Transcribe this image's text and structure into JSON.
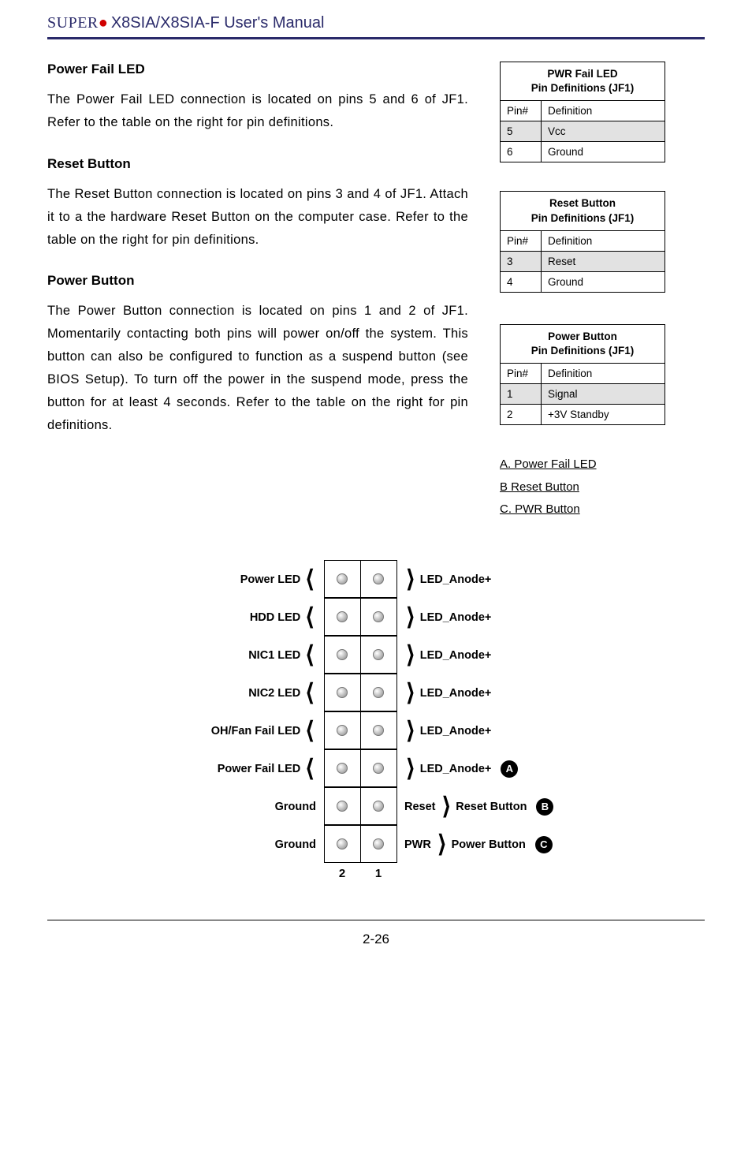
{
  "header": {
    "brand_left": "SUPER",
    "manual_title": "X8SIA/X8SIA-F User's Manual"
  },
  "sections": [
    {
      "title": "Power Fail LED",
      "body": "The Power Fail LED connection is located on pins 5 and 6 of JF1. Refer to the table on the right for pin definitions."
    },
    {
      "title": "Reset Button",
      "body": "The Reset Button connection is located on pins 3 and 4 of JF1. Attach it to a the hardware Reset Button on the computer case. Refer to the table on the right for pin definitions."
    },
    {
      "title": "Power Button",
      "body": "The Power Button connection is located on pins 1 and 2 of JF1. Momentarily contacting both pins will power on/off the system. This button can also be configured to function as a suspend button (see BIOS Setup). To turn off the power in the suspend mode, press the button for at least 4 seconds. Refer to the table on the right for pin definitions."
    }
  ],
  "tables": [
    {
      "header_line1": "PWR Fail LED",
      "header_line2": "Pin Definitions (JF1)",
      "col1": "Pin#",
      "col2": "Definition",
      "rows": [
        {
          "pin": "5",
          "def": "Vcc",
          "shaded": true
        },
        {
          "pin": "6",
          "def": "Ground",
          "shaded": false
        }
      ]
    },
    {
      "header_line1": "Reset Button",
      "header_line2": "Pin Definitions (JF1)",
      "col1": "Pin#",
      "col2": "Definition",
      "rows": [
        {
          "pin": "3",
          "def": "Reset",
          "shaded": true
        },
        {
          "pin": "4",
          "def": "Ground",
          "shaded": false
        }
      ]
    },
    {
      "header_line1": "Power Button",
      "header_line2": "Pin Definitions (JF1)",
      "col1": "Pin#",
      "col2": "Definition",
      "rows": [
        {
          "pin": "1",
          "def": "Signal",
          "shaded": true
        },
        {
          "pin": "2",
          "def": "+3V Standby",
          "shaded": false
        }
      ]
    }
  ],
  "links": [
    "A. Power Fail LED",
    "B Reset Button",
    "C. PWR Button"
  ],
  "diagram": {
    "rows": [
      {
        "left": "Power LED",
        "right": "LED_Anode+",
        "badge": "",
        "reset": "",
        "pwr": ""
      },
      {
        "left": "HDD LED",
        "right": "LED_Anode+",
        "badge": "",
        "reset": "",
        "pwr": ""
      },
      {
        "left": "NIC1 LED",
        "right": "LED_Anode+",
        "badge": "",
        "reset": "",
        "pwr": ""
      },
      {
        "left": "NIC2 LED",
        "right": "LED_Anode+",
        "badge": "",
        "reset": "",
        "pwr": ""
      },
      {
        "left": "OH/Fan Fail LED",
        "right": "LED_Anode+",
        "badge": "",
        "reset": "",
        "pwr": ""
      },
      {
        "left": "Power Fail LED",
        "right": "LED_Anode+",
        "badge": "A",
        "reset": "",
        "pwr": ""
      },
      {
        "left": "Ground",
        "right": "Reset Button",
        "badge": "B",
        "reset": "Reset",
        "pwr": ""
      },
      {
        "left": "Ground",
        "right": "Power Button",
        "badge": "C",
        "reset": "",
        "pwr": "PWR"
      }
    ],
    "col_left_num": "2",
    "col_right_num": "1"
  },
  "page_number": "2-26",
  "colors": {
    "header_border": "#2a2a6a",
    "brand_text": "#2a2a6a",
    "brand_dot": "#d00000",
    "table_shade": "#e2e2e2",
    "badge_bg": "#000000",
    "badge_fg": "#ffffff"
  }
}
